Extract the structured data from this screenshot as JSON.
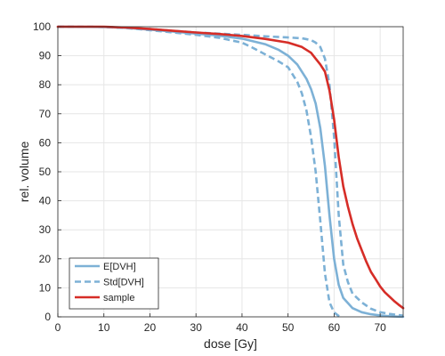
{
  "chart_data": {
    "type": "line",
    "title": "",
    "xlabel": "dose [Gy]",
    "ylabel": "rel. volume",
    "xlim": [
      0,
      75
    ],
    "ylim": [
      0,
      100
    ],
    "x_ticks": [
      0,
      10,
      20,
      30,
      40,
      50,
      60,
      70
    ],
    "y_ticks": [
      0,
      10,
      20,
      30,
      40,
      50,
      60,
      70,
      80,
      90,
      100
    ],
    "grid": true,
    "legend_position": "bottom-left",
    "series": [
      {
        "name": "E[DVH]",
        "color": "#7db1d6",
        "style": "solid",
        "points": [
          [
            0,
            100
          ],
          [
            10,
            99.9
          ],
          [
            15,
            99.6
          ],
          [
            20,
            99.0
          ],
          [
            25,
            98.3
          ],
          [
            30,
            97.6
          ],
          [
            35,
            96.9
          ],
          [
            40,
            95.9
          ],
          [
            45,
            94.0
          ],
          [
            48,
            92.0
          ],
          [
            50,
            90.0
          ],
          [
            52,
            87.0
          ],
          [
            54,
            82.0
          ],
          [
            55,
            78.5
          ],
          [
            56,
            73.5
          ],
          [
            57,
            65.0
          ],
          [
            58,
            52.0
          ],
          [
            59,
            35.0
          ],
          [
            60,
            20.0
          ],
          [
            61,
            11.0
          ],
          [
            62,
            6.5
          ],
          [
            64,
            3.0
          ],
          [
            66,
            1.6
          ],
          [
            68,
            0.9
          ],
          [
            70,
            0.5
          ],
          [
            72,
            0.2
          ],
          [
            75,
            0
          ]
        ]
      },
      {
        "name": "Std[DVH]",
        "color": "#7db1d6",
        "style": "dashed",
        "upper_points": [
          [
            0,
            100
          ],
          [
            10,
            99.9
          ],
          [
            15,
            99.6
          ],
          [
            20,
            99.2
          ],
          [
            25,
            98.6
          ],
          [
            30,
            98.0
          ],
          [
            35,
            97.6
          ],
          [
            40,
            97.2
          ],
          [
            45,
            96.7
          ],
          [
            50,
            96.3
          ],
          [
            53,
            96.0
          ],
          [
            55,
            95.4
          ],
          [
            56,
            94.5
          ],
          [
            57,
            93.0
          ],
          [
            58,
            89.0
          ],
          [
            59,
            80.0
          ],
          [
            60,
            62.0
          ],
          [
            61,
            35.0
          ],
          [
            62,
            18.0
          ],
          [
            63,
            12.0
          ],
          [
            64,
            8.0
          ],
          [
            66,
            5.0
          ],
          [
            68,
            2.8
          ],
          [
            70,
            1.6
          ],
          [
            72,
            1.0
          ],
          [
            75,
            0.4
          ]
        ],
        "lower_points": [
          [
            0,
            100
          ],
          [
            10,
            99.9
          ],
          [
            15,
            99.5
          ],
          [
            20,
            98.8
          ],
          [
            25,
            98.0
          ],
          [
            30,
            97.2
          ],
          [
            35,
            96.2
          ],
          [
            40,
            94.5
          ],
          [
            42,
            93.0
          ],
          [
            45,
            90.5
          ],
          [
            48,
            88.0
          ],
          [
            50,
            86.0
          ],
          [
            52,
            81.0
          ],
          [
            53,
            77.0
          ],
          [
            54,
            71.0
          ],
          [
            55,
            62.0
          ],
          [
            56,
            50.0
          ],
          [
            57,
            33.0
          ],
          [
            58,
            15.0
          ],
          [
            59,
            5.0
          ],
          [
            60,
            1.5
          ],
          [
            61,
            0.3
          ],
          [
            61.5,
            0
          ]
        ]
      },
      {
        "name": "sample",
        "color": "#d62d27",
        "style": "solid",
        "points": [
          [
            0,
            100
          ],
          [
            10,
            100
          ],
          [
            15,
            99.7
          ],
          [
            20,
            99.2
          ],
          [
            25,
            98.6
          ],
          [
            30,
            98.0
          ],
          [
            35,
            97.5
          ],
          [
            40,
            96.8
          ],
          [
            45,
            95.8
          ],
          [
            50,
            94.5
          ],
          [
            53,
            93.0
          ],
          [
            55,
            91.0
          ],
          [
            56,
            89.0
          ],
          [
            57,
            87.0
          ],
          [
            58,
            84.5
          ],
          [
            59,
            78.0
          ],
          [
            60,
            68.0
          ],
          [
            61,
            55.0
          ],
          [
            62,
            45.0
          ],
          [
            63,
            38.0
          ],
          [
            64,
            32.0
          ],
          [
            65,
            27.0
          ],
          [
            66,
            23.0
          ],
          [
            67,
            19.0
          ],
          [
            68,
            15.5
          ],
          [
            69,
            13.0
          ],
          [
            70,
            10.5
          ],
          [
            71,
            8.5
          ],
          [
            72,
            7.0
          ],
          [
            73,
            5.5
          ],
          [
            74,
            4.2
          ],
          [
            75,
            3.0
          ]
        ]
      }
    ]
  }
}
